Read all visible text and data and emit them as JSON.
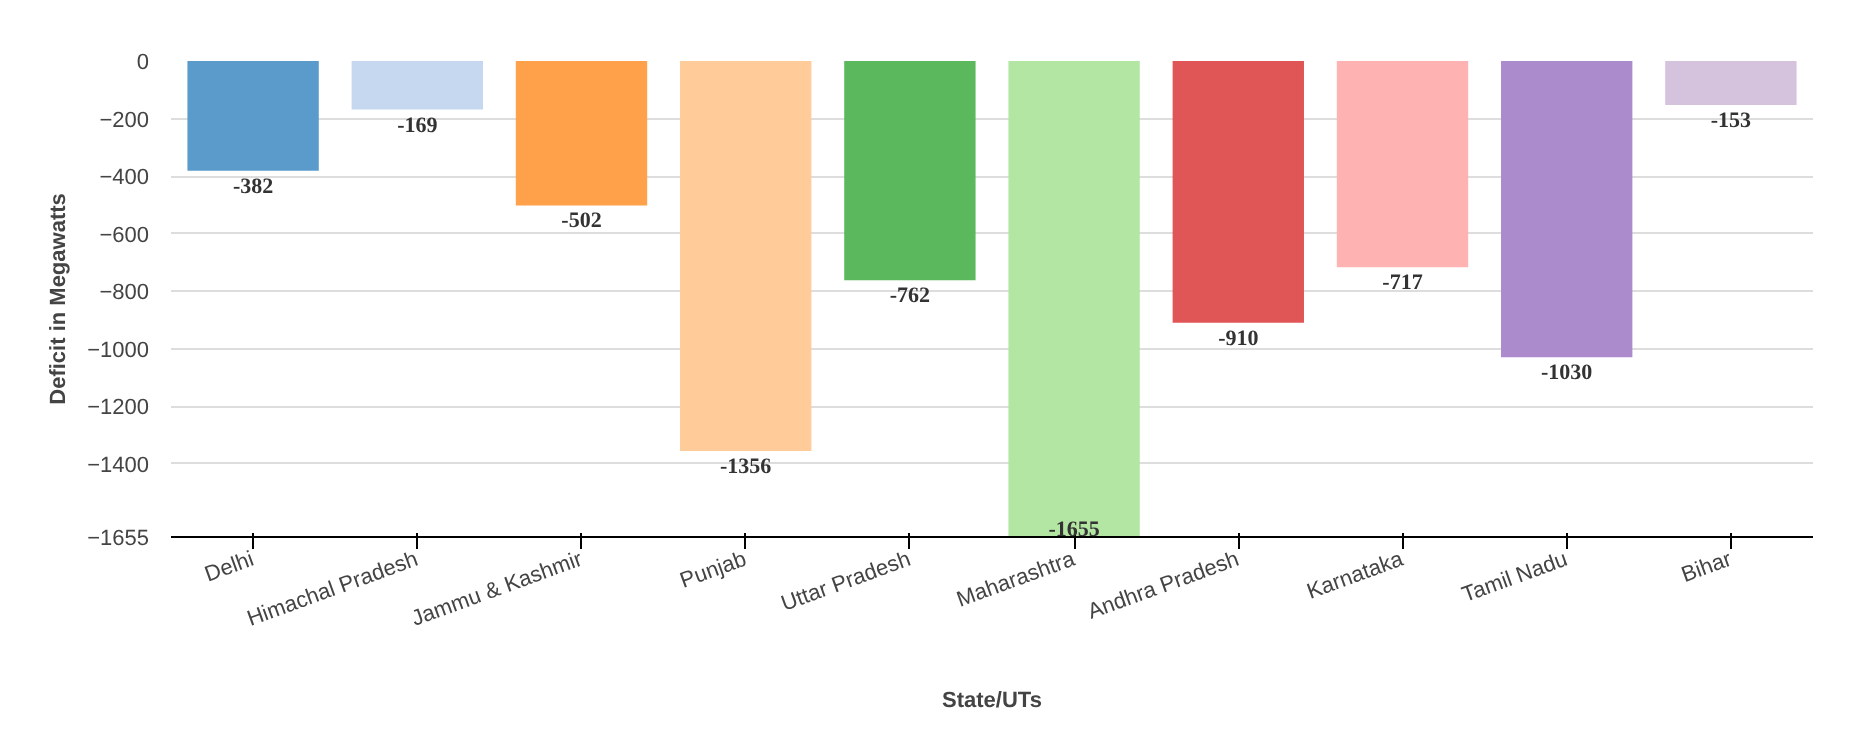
{
  "chart_data": {
    "type": "bar",
    "xlabel": "State/UTs",
    "ylabel": "Deficit in Megawatts",
    "categories": [
      "Delhi",
      "Himachal Pradesh",
      "Jammu & Kashmir",
      "Punjab",
      "Uttar Pradesh",
      "Maharashtra",
      "Andhra Pradesh",
      "Karnataka",
      "Tamil Nadu",
      "Bihar"
    ],
    "values": [
      -382,
      -169,
      -502,
      -1356,
      -762,
      -1655,
      -910,
      -717,
      -1030,
      -153
    ],
    "colors": [
      "#5a9bcc",
      "#c5d8ef",
      "#ffa04a",
      "#ffcc99",
      "#5cb85c",
      "#b2e6a2",
      "#e05656",
      "#ffb2b2",
      "#ab8bcc",
      "#d5c2dd"
    ],
    "ylim": [
      -1655,
      0
    ],
    "yticks": [
      0,
      -200,
      -400,
      -600,
      -800,
      -1000,
      -1200,
      -1400,
      -1655
    ],
    "grid": "y",
    "data_labels": true
  }
}
